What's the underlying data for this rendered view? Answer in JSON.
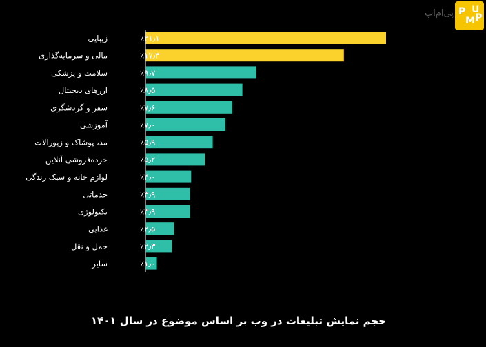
{
  "chart_data": {
    "type": "bar",
    "orientation": "horizontal",
    "title": "حجم نمایش تبلیغات در وب بر اساس موضوع در سال ۱۴۰۱",
    "categories": [
      "زیبایی",
      "مالی و سرمایه‌گذاری",
      "سلامت و پزشکی",
      "ارزهای دیجیتال",
      "سفر و گردشگری",
      "آموزشی",
      "مد، پوشاک و زیورآلات",
      "خرده‌فروشی آنلاین",
      "لوازم خانه و سبک زندگی",
      "خدماتی",
      "تکنولوژی",
      "غذایی",
      "حمل و نقل",
      "سایر"
    ],
    "values": [
      21.1,
      17.4,
      9.7,
      8.5,
      7.6,
      7.0,
      5.9,
      5.2,
      4.0,
      3.9,
      3.9,
      2.5,
      2.3,
      1.0
    ],
    "value_labels": [
      "٪۲۱٫۱",
      "٪۱۷٫۴",
      "٪۹٫۷",
      "٪۸٫۵",
      "٪۷٫۶",
      "٪۷٫۰",
      "٪۵٫۹",
      "٪۵٫۲",
      "٪۴٫۰",
      "٪۳٫۹",
      "٪۳٫۹",
      "٪۲٫۵",
      "٪۲٫۳",
      "٪۱٫۰"
    ],
    "unit": "%",
    "xlim": [
      0,
      21.1
    ],
    "highlight_count": 2,
    "colors": {
      "highlight": "#fbd22b",
      "normal": "#2fbfa8",
      "axis": "#ffffff",
      "text": "#ffffff"
    }
  },
  "logo": {
    "text": "پی‌ام‌آپ",
    "badge_letters": [
      "P",
      "M",
      "U",
      "P"
    ],
    "colors": {
      "badge": "#f6c400",
      "letters": "#ffffff"
    }
  }
}
